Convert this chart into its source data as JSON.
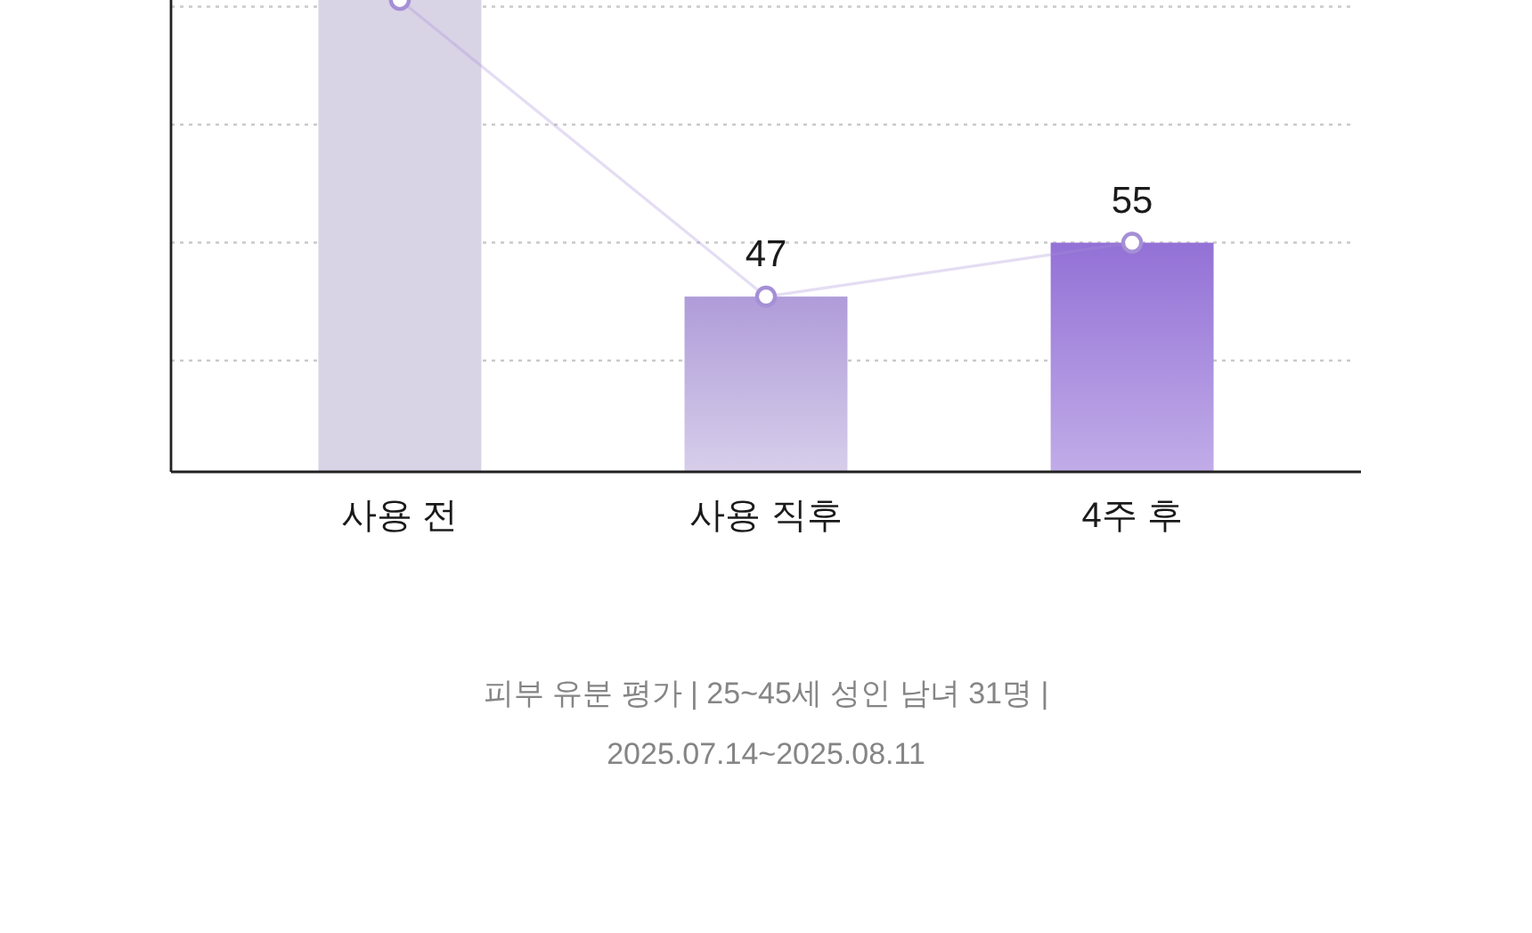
{
  "chart_data": {
    "type": "bar",
    "categories": [
      "사용 전",
      "사용 직후",
      "4주 후"
    ],
    "ylim": [
      21,
      91
    ],
    "yticks": [
      {
        "value": 37.5,
        "label": null
      },
      {
        "value": 55,
        "label": null
      },
      {
        "value": 72.5,
        "label": null
      },
      {
        "value": 90,
        "label": null
      }
    ],
    "grid": "y",
    "tick_labels": "x",
    "marker": "circle",
    "series": [
      {
        "colors": [
          "#d9d3e6",
          "#c2b4de",
          "#9f7fdb"
        ],
        "values": [
          91,
          47,
          55
        ],
        "value_labels": [
          null,
          "47",
          "55"
        ]
      },
      {
        "type": "line",
        "color": "#a58fd6",
        "values": [
          91,
          47,
          55
        ]
      }
    ],
    "annotations": [
      "피부 유분 평가 | 25~45세 성인 남녀 31명 |",
      "2025.07.14~2025.08.11"
    ]
  }
}
